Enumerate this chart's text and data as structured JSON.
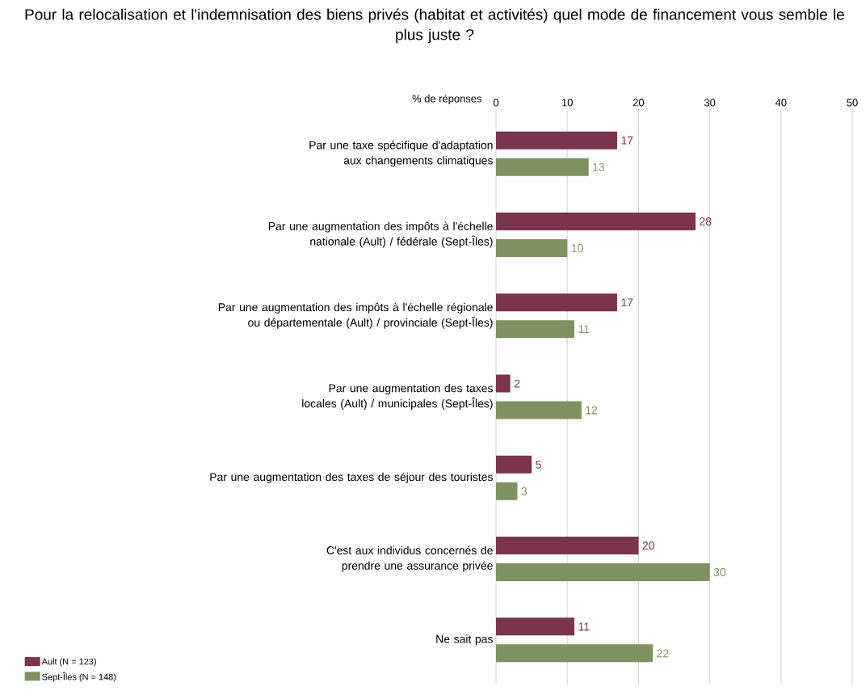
{
  "chart_data": {
    "type": "bar",
    "orientation": "horizontal",
    "title": "Pour la relocalisation et l'indemnisation des biens privés (habitat et activités) quel mode de financement vous semble le plus juste ?",
    "xlabel": "% de réponses",
    "categories": [
      "Par une taxe spécifique d'adaptation aux changements climatiques",
      "Par une augmentation des impôts à l'échelle nationale (Ault) / fédérale (Sept-Îles)",
      "Par une augmentation des impôts à l'échelle régionale ou départementale (Ault) / provinciale (Sept-Îles)",
      "Par une augmentation des taxes locales (Ault) / municipales (Sept-Îles)",
      "Par une augmentation des taxes de séjour des touristes",
      "C'est aux individus concernés de prendre une assurance privée",
      "Ne sait pas"
    ],
    "series": [
      {
        "name": "Ault (N = 123)",
        "color": "#7b344e",
        "values": [
          17,
          28,
          17,
          2,
          5,
          20,
          11
        ]
      },
      {
        "name": "Sept-Îles (N = 148)",
        "color": "#7d9161",
        "values": [
          13,
          10,
          11,
          12,
          3,
          30,
          22
        ]
      }
    ],
    "xlim": [
      0,
      50
    ],
    "xticks": [
      0,
      10,
      20,
      30,
      40,
      50
    ],
    "grid": "x",
    "legend": "bottom left",
    "data_labels": true
  }
}
